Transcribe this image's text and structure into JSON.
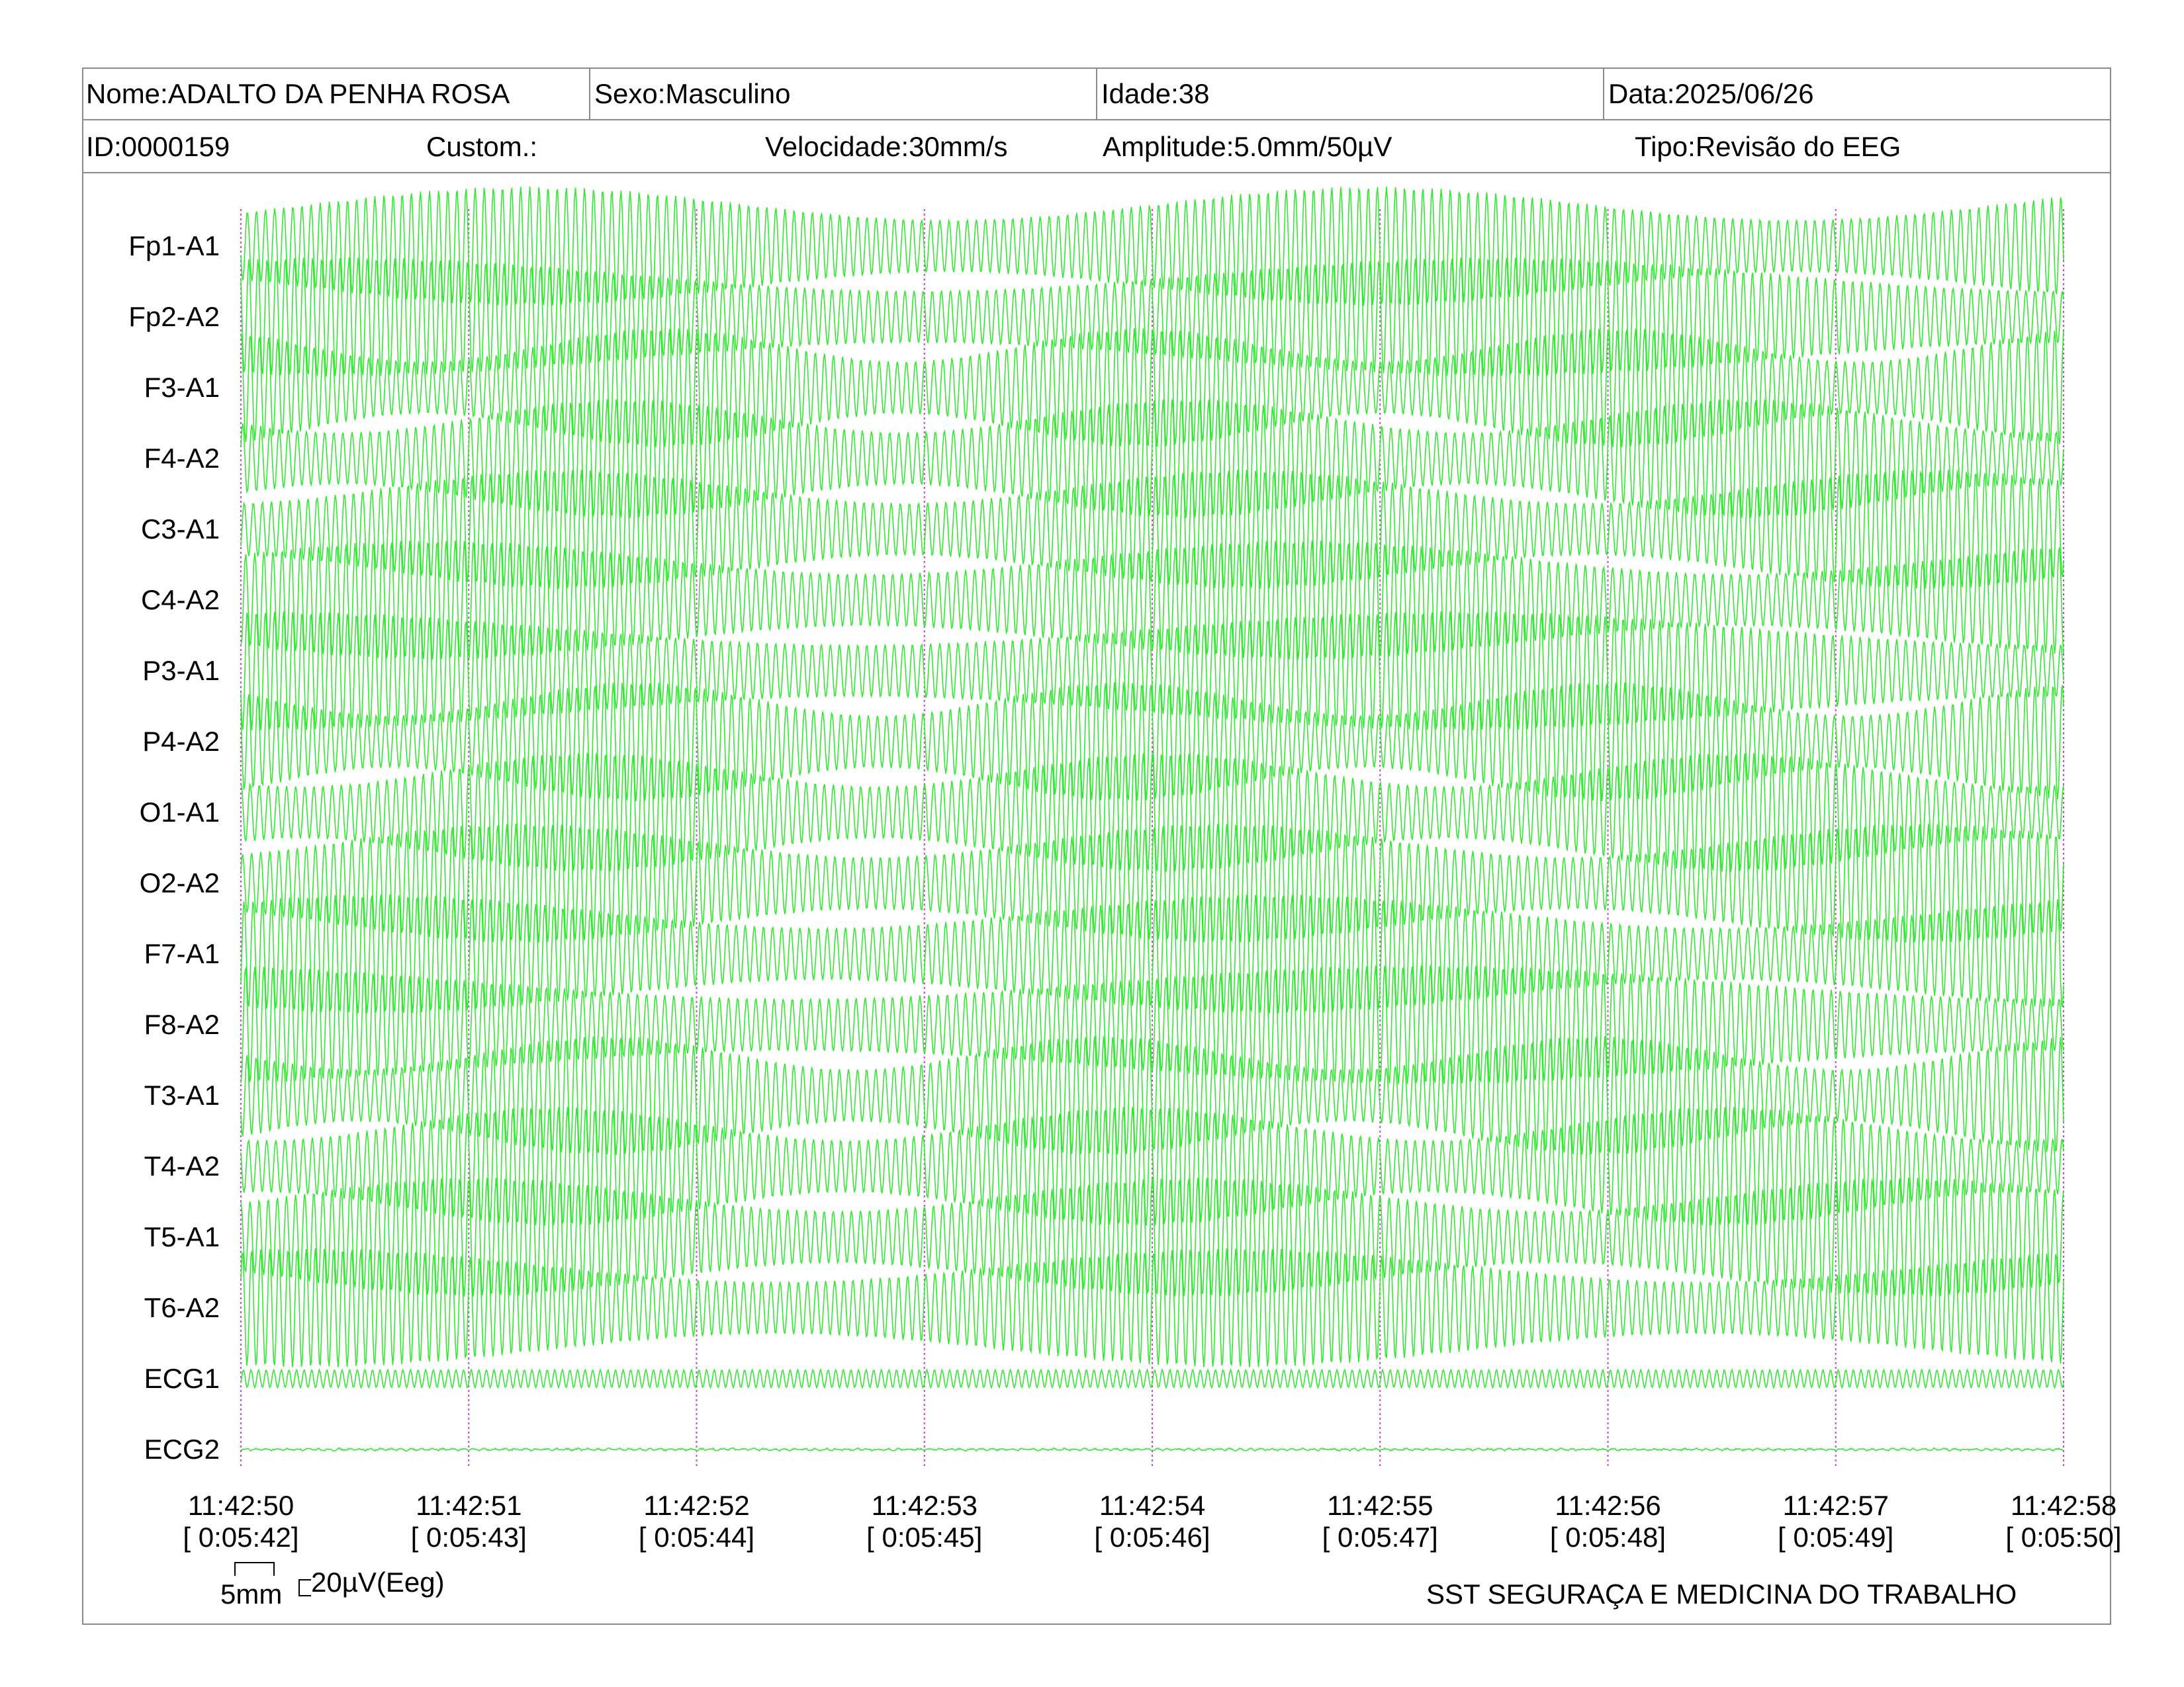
{
  "header": {
    "nome": "Nome:ADALTO DA PENHA ROSA",
    "sexo": "Sexo:Masculino",
    "idade": "Idade:38",
    "data": "Data:2025/06/26",
    "id": "ID:0000159",
    "custom": "Custom.:",
    "velocidade": "Velocidade:30mm/s",
    "amplitude": "Amplitude:5.0mm/50µV",
    "tipo": "Tipo:Revisão do EEG"
  },
  "calibration": {
    "time_label": "5mm",
    "amp_label": "20µV(Eeg)"
  },
  "footer": {
    "company": "SST SEGURAÇA E MEDICINA DO TRABALHO"
  },
  "colors": {
    "trace": "#33e833",
    "time_marker": "#cc44cc",
    "border": "#8a8a8a"
  },
  "chart_data": {
    "type": "line",
    "title": "",
    "channels": [
      "Fp1-A1",
      "Fp2-A2",
      "F3-A1",
      "F4-A2",
      "C3-A1",
      "C4-A2",
      "P3-A1",
      "P4-A2",
      "O1-A1",
      "O2-A2",
      "F7-A1",
      "F8-A2",
      "T3-A1",
      "T4-A2",
      "T5-A1",
      "T6-A2",
      "ECG1",
      "ECG2"
    ],
    "time_ticks": [
      {
        "clock": "11:42:50",
        "elapsed": "[ 0:05:42]"
      },
      {
        "clock": "11:42:51",
        "elapsed": "[ 0:05:43]"
      },
      {
        "clock": "11:42:52",
        "elapsed": "[ 0:05:44]"
      },
      {
        "clock": "11:42:53",
        "elapsed": "[ 0:05:45]"
      },
      {
        "clock": "11:42:54",
        "elapsed": "[ 0:05:46]"
      },
      {
        "clock": "11:42:55",
        "elapsed": "[ 0:05:47]"
      },
      {
        "clock": "11:42:56",
        "elapsed": "[ 0:05:48]"
      },
      {
        "clock": "11:42:57",
        "elapsed": "[ 0:05:49]"
      },
      {
        "clock": "11:42:58",
        "elapsed": "[ 0:05:50]"
      }
    ],
    "xlim_seconds": [
      0,
      8
    ],
    "eeg_dominant_frequency_hz": 25,
    "ecg1_frequency_hz": 30,
    "eeg_amplitude_uv": 200,
    "ecg1_amplitude_uv": 30,
    "ecg2_amplitude_uv": 5,
    "grid": false
  }
}
